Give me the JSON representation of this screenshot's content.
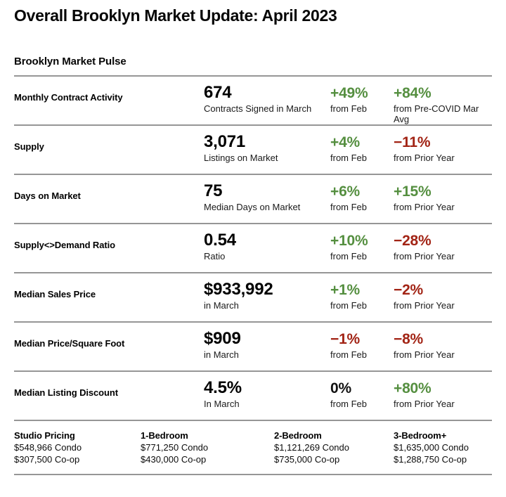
{
  "page": {
    "title": "Overall Brooklyn Market Update: April 2023",
    "section_title": "Brooklyn Market Pulse"
  },
  "colors": {
    "positive": "#558f40",
    "negative": "#a22415",
    "neutral": "#111111",
    "rule": "#969696"
  },
  "metrics": [
    {
      "label": "Monthly Contract Activity",
      "value": "674",
      "value_sub": "Contracts Signed in March",
      "change_mom": "+49%",
      "change_mom_sub": "from Feb",
      "change_mom_dir": "positive",
      "change_yoy": "+84%",
      "change_yoy_sub": "from Pre-COVID Mar Avg",
      "change_yoy_dir": "positive"
    },
    {
      "label": "Supply",
      "value": "3,071",
      "value_sub": "Listings on Market",
      "change_mom": "+4%",
      "change_mom_sub": "from Feb",
      "change_mom_dir": "positive",
      "change_yoy": "−11%",
      "change_yoy_sub": "from Prior Year",
      "change_yoy_dir": "negative"
    },
    {
      "label": "Days on Market",
      "value": "75",
      "value_sub": "Median Days on Market",
      "change_mom": "+6%",
      "change_mom_sub": "from Feb",
      "change_mom_dir": "positive",
      "change_yoy": "+15%",
      "change_yoy_sub": "from Prior Year",
      "change_yoy_dir": "positive"
    },
    {
      "label": "Supply<>Demand Ratio",
      "value": "0.54",
      "value_sub": "Ratio",
      "change_mom": "+10%",
      "change_mom_sub": "from Feb",
      "change_mom_dir": "positive",
      "change_yoy": "−28%",
      "change_yoy_sub": "from Prior Year",
      "change_yoy_dir": "negative"
    },
    {
      "label": "Median Sales Price",
      "value": "$933,992",
      "value_sub": "in March",
      "change_mom": "+1%",
      "change_mom_sub": "from Feb",
      "change_mom_dir": "positive",
      "change_yoy": "−2%",
      "change_yoy_sub": "from Prior Year",
      "change_yoy_dir": "negative"
    },
    {
      "label": "Median Price/Square Foot",
      "value": "$909",
      "value_sub": "in March",
      "change_mom": "−1%",
      "change_mom_sub": "from Feb",
      "change_mom_dir": "negative",
      "change_yoy": "−8%",
      "change_yoy_sub": "from Prior Year",
      "change_yoy_dir": "negative"
    },
    {
      "label": "Median Listing Discount",
      "value": "4.5%",
      "value_sub": "In March",
      "change_mom": "0%",
      "change_mom_sub": "from Feb",
      "change_mom_dir": "neutral",
      "change_yoy": "+80%",
      "change_yoy_sub": "from Prior Year",
      "change_yoy_dir": "positive"
    }
  ],
  "pricing": [
    {
      "label": "Studio Pricing",
      "condo": "$548,966 Condo",
      "coop": "$307,500 Co-op"
    },
    {
      "label": "1-Bedroom",
      "condo": "$771,250 Condo",
      "coop": "$430,000 Co-op"
    },
    {
      "label": "2-Bedroom",
      "condo": "$1,121,269 Condo",
      "coop": "$735,000 Co-op"
    },
    {
      "label": "3-Bedroom+",
      "condo": "$1,635,000 Condo",
      "coop": "$1,288,750 Co-op"
    }
  ]
}
